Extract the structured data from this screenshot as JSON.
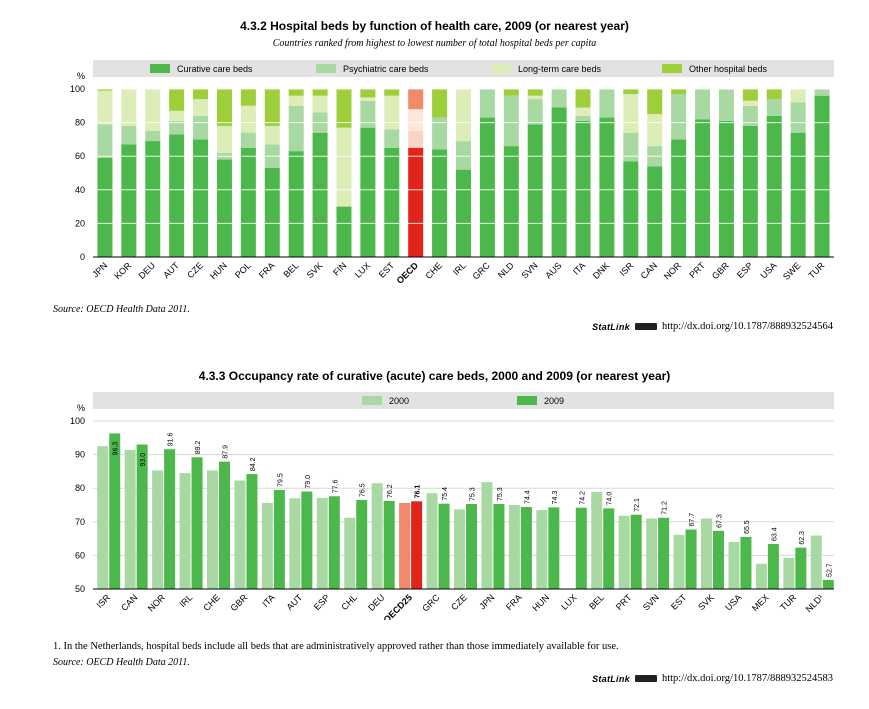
{
  "fig1": {
    "title": "4.3.2  Hospital beds by function of health care, 2009 (or nearest year)",
    "subtitle": "Countries ranked from highest to lowest number of total hospital beds per capita",
    "source": "Source:  OECD Health Data 2011.",
    "statlink_brand": "StatLink",
    "statlink_url": "http://dx.doi.org/10.1787/888932524564"
  },
  "fig2": {
    "title": "4.3.3  Occupancy rate of curative (acute) care beds, 2000 and 2009 (or nearest year)",
    "note": "1.  In the Netherlands, hospital beds include all beds that are administratively approved rather than those immediately available for use.",
    "source": "Source:  OECD Health Data 2011.",
    "statlink_brand": "StatLink",
    "statlink_url": "http://dx.doi.org/10.1787/888932524583"
  },
  "colors": {
    "curative": "#4cb84c",
    "psychiatric": "#a9d9a3",
    "longterm": "#dcedb8",
    "other": "#9dcf3a",
    "y2000": "#a9d9a3",
    "y2009": "#4cb84c",
    "highlight_main": "#e2231a",
    "highlight_light": "#f08a6a",
    "legend_bg": "#e2e2e2",
    "grid": "#ffffff",
    "plot_bg": "#ffffff"
  },
  "chart_data": [
    {
      "type": "bar",
      "stacked": true,
      "ylabel": "%",
      "ylim": [
        0,
        100
      ],
      "yticks": [
        0,
        20,
        40,
        60,
        80,
        100
      ],
      "legend_position": "top",
      "highlight": "OECD",
      "categories": [
        "JPN",
        "KOR",
        "DEU",
        "AUT",
        "CZE",
        "HUN",
        "POL",
        "FRA",
        "BEL",
        "SVK",
        "FIN",
        "LUX",
        "EST",
        "OECD",
        "CHE",
        "IRL",
        "GRC",
        "NLD",
        "SVN",
        "AUS",
        "ITA",
        "DNK",
        "ISR",
        "CAN",
        "NOR",
        "PRT",
        "GBR",
        "ESP",
        "USA",
        "SWE",
        "TUR"
      ],
      "series": [
        {
          "name": "Curative care beds",
          "key": "curative",
          "values": [
            59,
            67,
            69,
            73,
            70,
            58,
            65,
            53,
            63,
            74,
            30,
            77,
            65,
            65,
            64,
            52,
            83,
            66,
            79,
            89,
            81,
            83,
            57,
            54,
            70,
            82,
            81,
            78,
            84,
            74,
            96
          ]
        },
        {
          "name": "Psychiatric care beds",
          "key": "psychiatric",
          "values": [
            20,
            11,
            6,
            8,
            14,
            4,
            9,
            14,
            27,
            12,
            0,
            16,
            11,
            10,
            19,
            17,
            17,
            30,
            15,
            11,
            3,
            17,
            17,
            12,
            27,
            18,
            19,
            12,
            10,
            18,
            4
          ]
        },
        {
          "name": "Long-term care beds",
          "key": "longterm",
          "values": [
            20,
            22,
            25,
            6,
            10,
            16,
            16,
            11,
            6,
            10,
            47,
            2,
            20,
            13,
            0,
            31,
            0,
            0,
            2,
            0,
            5,
            0,
            23,
            19,
            0,
            0,
            0,
            3,
            0,
            8,
            0
          ]
        },
        {
          "name": "Other hospital beds",
          "key": "other",
          "values": [
            1,
            0,
            0,
            13,
            6,
            22,
            10,
            22,
            4,
            4,
            23,
            5,
            4,
            12,
            17,
            0,
            0,
            4,
            4,
            0,
            11,
            0,
            3,
            15,
            3,
            0,
            0,
            7,
            6,
            0,
            0
          ]
        }
      ]
    },
    {
      "type": "bar",
      "ylabel": "%",
      "ylim": [
        50,
        100
      ],
      "yticks": [
        50,
        60,
        70,
        80,
        90,
        100
      ],
      "legend_position": "top",
      "highlight": "OECD25",
      "categories": [
        "ISR",
        "CAN",
        "NOR",
        "IRL",
        "CHE",
        "GBR",
        "ITA",
        "AUT",
        "ESP",
        "CHL",
        "DEU",
        "OECD25",
        "GRC",
        "CZE",
        "JPN",
        "FRA",
        "HUN",
        "LUX",
        "BEL",
        "PRT",
        "SVN",
        "EST",
        "SVK",
        "USA",
        "MEX",
        "TUR",
        "NLD¹"
      ],
      "series": [
        {
          "name": "2000",
          "key": "y2000",
          "values": [
            92.5,
            91.4,
            85.3,
            84.5,
            85.3,
            82.3,
            75.6,
            77.0,
            77.1,
            71.2,
            81.5,
            75.6,
            78.5,
            73.7,
            81.8,
            75.0,
            73.5,
            null,
            78.9,
            71.8,
            71.0,
            66.1,
            71.0,
            64.0,
            57.5,
            59.3,
            65.9
          ]
        },
        {
          "name": "2009",
          "key": "y2009",
          "values": [
            96.3,
            93.0,
            91.6,
            89.2,
            87.9,
            84.2,
            79.5,
            79.0,
            77.6,
            76.5,
            76.2,
            76.1,
            75.4,
            75.3,
            75.3,
            74.4,
            74.3,
            74.2,
            74.0,
            72.1,
            71.2,
            67.7,
            67.3,
            65.5,
            63.4,
            62.3,
            52.7
          ]
        }
      ]
    }
  ]
}
